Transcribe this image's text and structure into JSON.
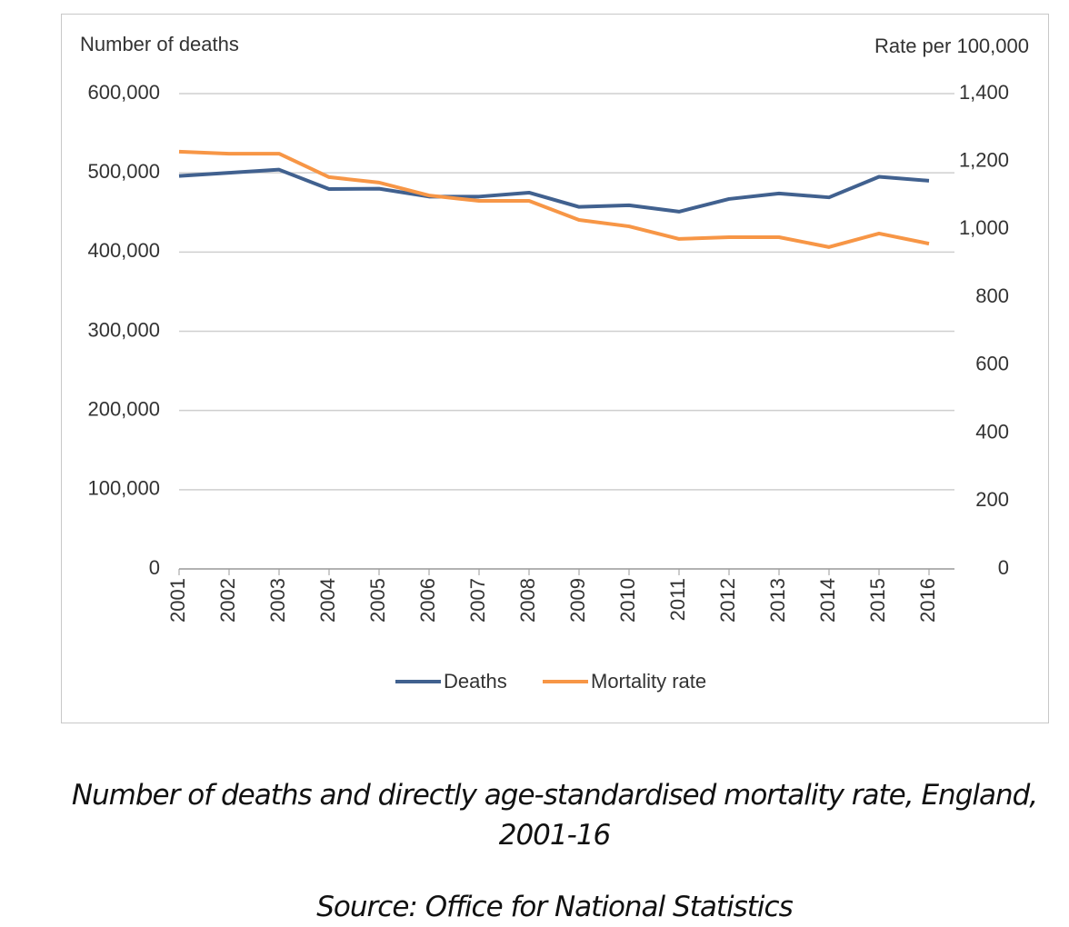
{
  "chart_data": {
    "type": "line",
    "y_axis_title": "Number of deaths",
    "y2_axis_title": "Rate per 100,000",
    "categories": [
      "2001",
      "2002",
      "2003",
      "2004",
      "2005",
      "2006",
      "2007",
      "2008",
      "2009",
      "2010",
      "2011",
      "2012",
      "2013",
      "2014",
      "2015",
      "2016"
    ],
    "series": [
      {
        "name": "Deaths",
        "color": "#41618f",
        "values": [
          496000,
          500000,
          504000,
          479500,
          480000,
          470000,
          470000,
          475000,
          457000,
          459000,
          451000,
          467000,
          474000,
          469000,
          495000,
          490000
        ]
      },
      {
        "name": "Mortality rate",
        "color": "#f79646",
        "axis": "y2",
        "values": [
          1229,
          1223,
          1223,
          1154,
          1138,
          1100,
          1084,
          1084,
          1028,
          1009,
          972,
          977,
          977,
          948,
          988,
          958
        ]
      }
    ],
    "ylim": [
      0,
      600000
    ],
    "yticks": [
      0,
      {
        "value": 100000,
        "label": "100,000"
      },
      {
        "value": 200000,
        "label": "200,000"
      },
      {
        "value": 300000,
        "label": "300,000"
      },
      {
        "value": 400000,
        "label": "400,000"
      },
      {
        "value": 500000,
        "label": "500,000"
      },
      {
        "value": 600000,
        "label": "600,000"
      }
    ],
    "y2lim": [
      0,
      1400
    ],
    "y2ticks": [
      0,
      200,
      400,
      600,
      800,
      {
        "value": 1000,
        "label": "1,000"
      },
      {
        "value": 1200,
        "label": "1,200"
      },
      {
        "value": 1400,
        "label": "1,400"
      }
    ],
    "grid": true,
    "legend": "bottom",
    "caption": "Number of deaths and directly age-standardised mortality rate, England, 2001-16",
    "source": "Source: Office for National Statistics"
  }
}
